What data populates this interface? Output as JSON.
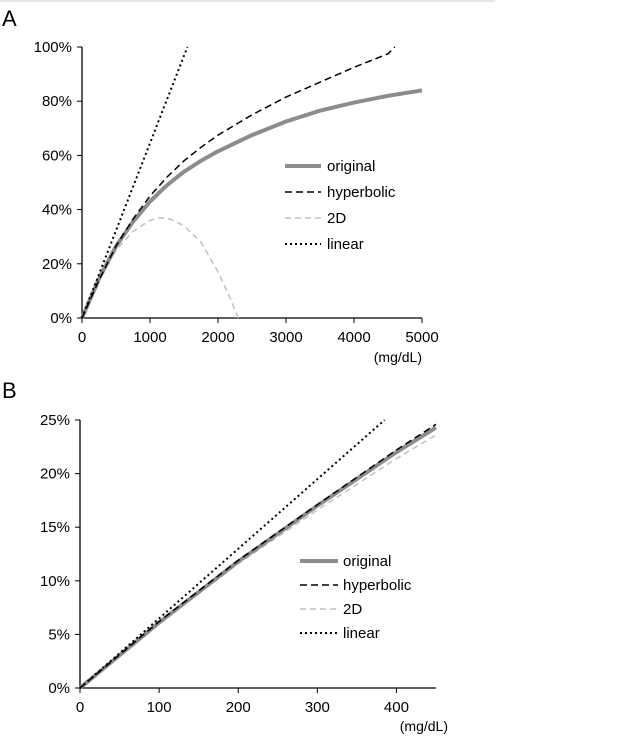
{
  "figure": {
    "title_top_rule_color": "#cccccc"
  },
  "chart_data": [
    {
      "panel": "A",
      "type": "line",
      "xlabel": "(mg/dL)",
      "ylabel": "",
      "xlim": [
        0,
        5000
      ],
      "ylim": [
        0,
        100
      ],
      "xticks": [
        0,
        1000,
        2000,
        3000,
        4000,
        5000
      ],
      "yticks": [
        0,
        20,
        40,
        60,
        80,
        100
      ],
      "xtick_labels": [
        "0",
        "1000",
        "2000",
        "3000",
        "4000",
        "5000"
      ],
      "ytick_labels": [
        "0%",
        "20%",
        "40%",
        "60%",
        "80%",
        "100%"
      ],
      "grid": false,
      "legend_position": "center-right",
      "series": [
        {
          "name": "original",
          "style": "solid-thick",
          "color": "#8c8c8c",
          "x": [
            0,
            250,
            500,
            750,
            1000,
            1250,
            1500,
            1750,
            2000,
            2500,
            3000,
            3500,
            4000,
            4500,
            5000
          ],
          "y": [
            0,
            14.5,
            26.5,
            35.5,
            43,
            49,
            54,
            58,
            61.5,
            67.5,
            72.5,
            76.5,
            79.5,
            82,
            84
          ]
        },
        {
          "name": "hyperbolic",
          "style": "dashed",
          "color": "#000000",
          "x": [
            0,
            250,
            500,
            750,
            1000,
            1250,
            1500,
            1750,
            2000,
            2500,
            3000,
            3500,
            4000,
            4500,
            4600
          ],
          "y": [
            0,
            14,
            26.5,
            36.5,
            45,
            52,
            58,
            63,
            67.5,
            75,
            81.5,
            87,
            92.5,
            97.5,
            100
          ]
        },
        {
          "name": "2D",
          "style": "dashed-light",
          "color": "#c0c0c0",
          "x": [
            0,
            250,
            500,
            750,
            1000,
            1150,
            1300,
            1500,
            1750,
            2000,
            2150,
            2300
          ],
          "y": [
            0,
            14.5,
            25,
            32,
            36,
            37,
            36.5,
            34,
            28,
            17,
            9,
            0
          ]
        },
        {
          "name": "linear",
          "style": "dotted",
          "color": "#000000",
          "x": [
            0,
            1550
          ],
          "y": [
            0,
            100
          ]
        }
      ]
    },
    {
      "panel": "B",
      "type": "line",
      "xlabel": "(mg/dL)",
      "ylabel": "",
      "xlim": [
        0,
        450
      ],
      "ylim": [
        0,
        25
      ],
      "xticks": [
        0,
        100,
        200,
        300,
        400
      ],
      "yticks": [
        0,
        5,
        10,
        15,
        20,
        25
      ],
      "xtick_labels": [
        "0",
        "100",
        "200",
        "300",
        "400"
      ],
      "ytick_labels": [
        "0%",
        "5%",
        "10%",
        "15%",
        "20%",
        "25%"
      ],
      "grid": false,
      "legend_position": "center-right",
      "series": [
        {
          "name": "original",
          "style": "solid-thick",
          "color": "#8c8c8c",
          "x": [
            0,
            100,
            200,
            300,
            400,
            450
          ],
          "y": [
            0,
            6.1,
            11.8,
            17.0,
            22.0,
            24.3
          ]
        },
        {
          "name": "hyperbolic",
          "style": "dashed",
          "color": "#000000",
          "x": [
            0,
            100,
            200,
            300,
            400,
            450
          ],
          "y": [
            0,
            6.2,
            11.9,
            17.1,
            22.2,
            24.6
          ]
        },
        {
          "name": "2D",
          "style": "dashed-light",
          "color": "#c0c0c0",
          "x": [
            0,
            100,
            200,
            300,
            400,
            450
          ],
          "y": [
            0,
            6.0,
            11.6,
            16.6,
            21.4,
            23.6
          ]
        },
        {
          "name": "linear",
          "style": "dotted",
          "color": "#000000",
          "x": [
            0,
            385
          ],
          "y": [
            0,
            25
          ]
        }
      ]
    }
  ]
}
